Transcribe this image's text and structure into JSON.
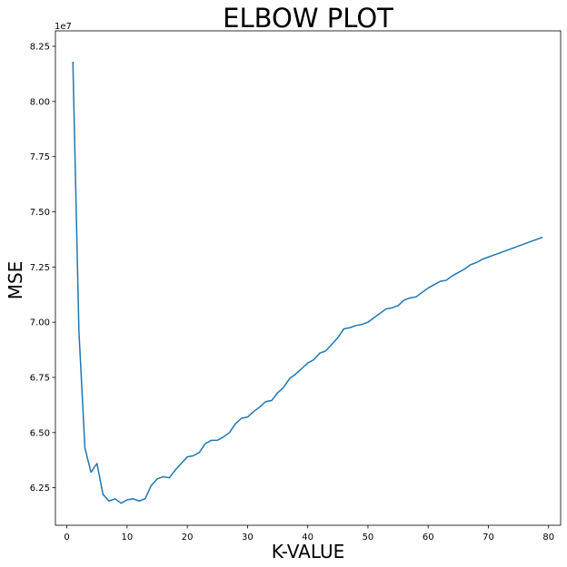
{
  "chart_data": {
    "type": "line",
    "title": "ELBOW PLOT",
    "xlabel": "K-VALUE",
    "ylabel": "MSE",
    "y_offset_label": "1e7",
    "xlim": [
      -1.9,
      82
    ],
    "ylim": [
      6.08,
      8.32
    ],
    "x_ticks": [
      0,
      10,
      20,
      30,
      40,
      50,
      60,
      70,
      80
    ],
    "x_tick_labels": [
      "0",
      "10",
      "20",
      "30",
      "40",
      "50",
      "60",
      "70",
      "80"
    ],
    "y_ticks": [
      6.25,
      6.5,
      6.75,
      7.0,
      7.25,
      7.5,
      7.75,
      8.0,
      8.25
    ],
    "y_tick_labels": [
      "6.25",
      "6.50",
      "6.75",
      "7.00",
      "7.25",
      "7.50",
      "7.75",
      "8.00",
      "8.25"
    ],
    "grid": false,
    "line_color": "#1f77b4",
    "series": [
      {
        "x": [
          1,
          2,
          3,
          4,
          5,
          6,
          7,
          8,
          9,
          10,
          11,
          12,
          13,
          14,
          15,
          16,
          17,
          18,
          19,
          20,
          21,
          22,
          23,
          24,
          25,
          26,
          27,
          28,
          29,
          30,
          31,
          32,
          33,
          34,
          35,
          36,
          37,
          38,
          39,
          40,
          41,
          42,
          43,
          44,
          45,
          46,
          47,
          48,
          49,
          50,
          51,
          52,
          53,
          54,
          55,
          56,
          57,
          58,
          59,
          60,
          61,
          62,
          63,
          64,
          65,
          66,
          67,
          68,
          69,
          70,
          71,
          72,
          73,
          74,
          75,
          76,
          77,
          78,
          79
        ],
        "y": [
          8.18,
          6.96,
          6.43,
          6.32,
          6.36,
          6.22,
          6.19,
          6.2,
          6.18,
          6.195,
          6.2,
          6.19,
          6.2,
          6.26,
          6.29,
          6.3,
          6.295,
          6.33,
          6.36,
          6.39,
          6.395,
          6.41,
          6.45,
          6.465,
          6.465,
          6.48,
          6.5,
          6.54,
          6.565,
          6.57,
          6.595,
          6.615,
          6.64,
          6.645,
          6.68,
          6.705,
          6.745,
          6.765,
          6.79,
          6.815,
          6.83,
          6.86,
          6.87,
          6.9,
          6.93,
          6.97,
          6.975,
          6.985,
          6.99,
          7.0,
          7.02,
          7.04,
          7.06,
          7.065,
          7.075,
          7.1,
          7.11,
          7.115,
          7.135,
          7.155,
          7.17,
          7.185,
          7.19,
          7.21,
          7.225,
          7.24,
          7.26,
          7.27,
          7.285,
          7.295,
          7.305,
          7.315,
          7.325,
          7.335,
          7.345,
          7.355,
          7.365,
          7.375,
          7.385
        ]
      }
    ]
  }
}
